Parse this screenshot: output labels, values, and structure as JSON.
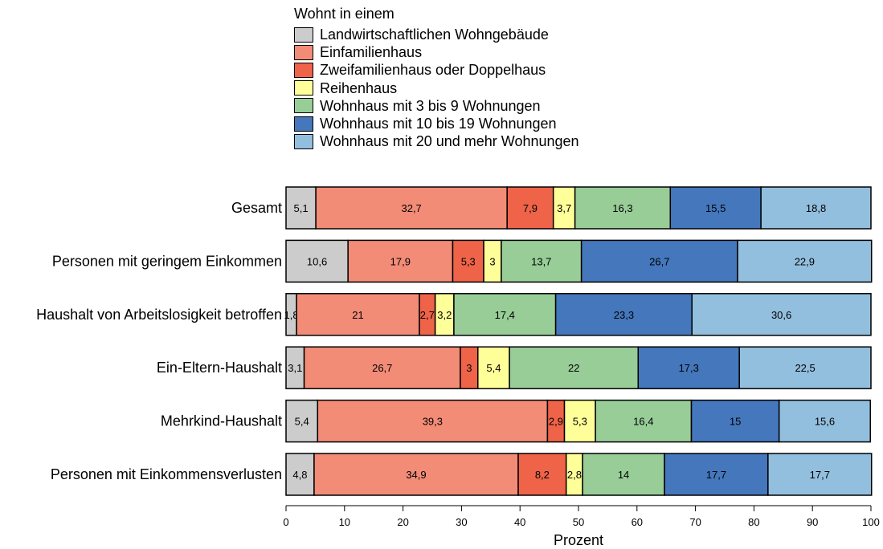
{
  "chart_data": {
    "type": "bar",
    "orientation": "horizontal",
    "stacked": true,
    "legend_title": "Wohnt in einem",
    "legend_position": "top",
    "xlabel": "Prozent",
    "xlim": [
      0,
      100
    ],
    "xticks": [
      0,
      10,
      20,
      30,
      40,
      50,
      60,
      70,
      80,
      90,
      100
    ],
    "categories": [
      "Gesamt",
      "Personen mit geringem Einkommen",
      "Haushalt von Arbeitslosigkeit betroffen",
      "Ein-Eltern-Haushalt",
      "Mehrkind-Haushalt",
      "Personen mit Einkommensverlusten"
    ],
    "series": [
      {
        "name": "Landwirtschaftlichen Wohngebäude",
        "color": "#cccccc",
        "values": [
          5.1,
          10.6,
          1.8,
          3.1,
          5.4,
          4.8
        ],
        "labels": [
          "5,1",
          "10,6",
          "1,8",
          "3,1",
          "5,4",
          "4,8"
        ]
      },
      {
        "name": "Einfamilienhaus",
        "color": "#f28c77",
        "values": [
          32.7,
          17.9,
          21,
          26.7,
          39.3,
          34.9
        ],
        "labels": [
          "32,7",
          "17,9",
          "21",
          "26,7",
          "39,3",
          "34,9"
        ]
      },
      {
        "name": "Zweifamilienhaus oder Doppelhaus",
        "color": "#ef6348",
        "values": [
          7.9,
          5.3,
          2.7,
          3,
          2.9,
          8.2
        ],
        "labels": [
          "7,9",
          "5,3",
          "2,7",
          "3",
          "2,9",
          "8,2"
        ]
      },
      {
        "name": "Reihenhaus",
        "color": "#ffff99",
        "values": [
          3.7,
          3,
          3.2,
          5.4,
          5.3,
          2.8
        ],
        "labels": [
          "3,7",
          "3",
          "3,2",
          "5,4",
          "5,3",
          "2,8"
        ]
      },
      {
        "name": "Wohnhaus mit 3 bis 9 Wohnungen",
        "color": "#98cd98",
        "values": [
          16.3,
          13.7,
          17.4,
          22,
          16.4,
          14
        ],
        "labels": [
          "16,3",
          "13,7",
          "17,4",
          "22",
          "16,4",
          "14"
        ]
      },
      {
        "name": "Wohnhaus mit 10 bis 19 Wohnungen",
        "color": "#4477bb",
        "values": [
          15.5,
          26.7,
          23.3,
          17.3,
          15,
          17.7
        ],
        "labels": [
          "15,5",
          "26,7",
          "23,3",
          "17,3",
          "15",
          "17,7"
        ]
      },
      {
        "name": "Wohnhaus mit 20 und mehr Wohnungen",
        "color": "#93bfdf",
        "values": [
          18.8,
          22.9,
          30.6,
          22.5,
          15.6,
          17.7
        ],
        "labels": [
          "18,8",
          "22,9",
          "30,6",
          "22,5",
          "15,6",
          "17,7"
        ]
      }
    ]
  }
}
